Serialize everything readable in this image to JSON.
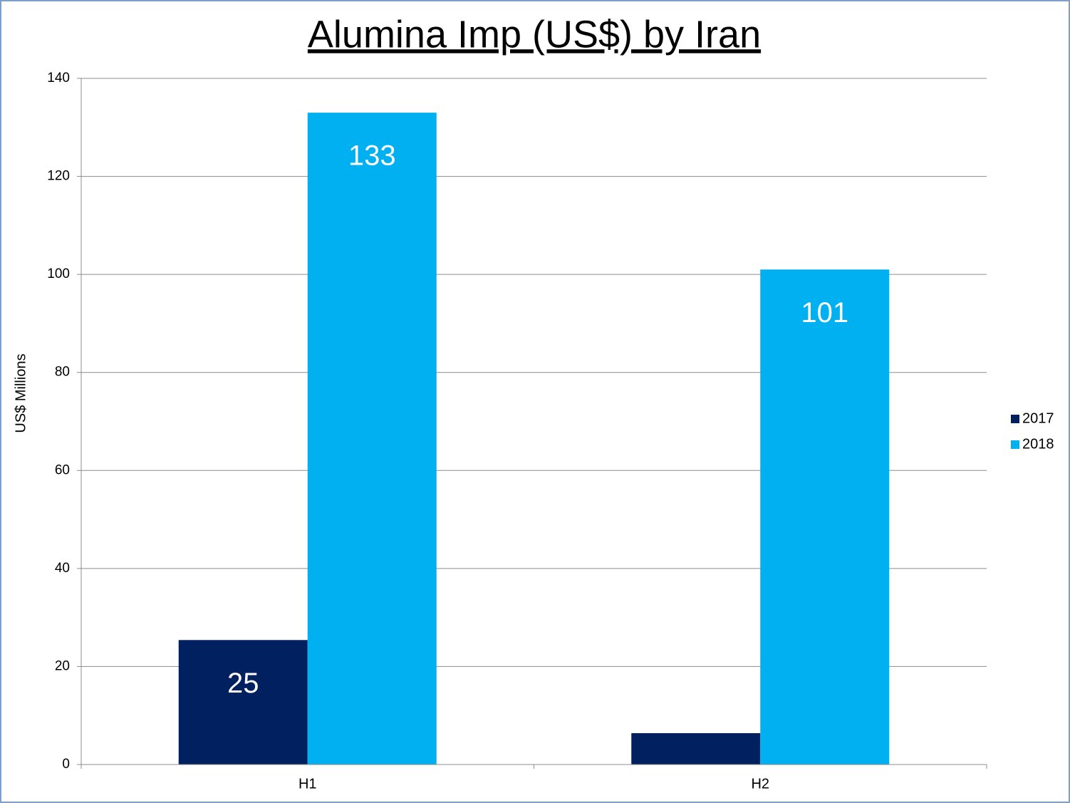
{
  "chart_data": {
    "type": "bar",
    "title": "Alumina Imp (US$) by Iran",
    "y_label": "US$ Millions",
    "categories": [
      "H1",
      "H2"
    ],
    "series": [
      {
        "name": "2017",
        "color": "#002060",
        "values": [
          25.4,
          6.4
        ],
        "value_labels": [
          "25",
          null
        ]
      },
      {
        "name": "2018",
        "color": "#00b0f0",
        "values": [
          133,
          101
        ],
        "value_labels": [
          "133",
          "101"
        ]
      }
    ],
    "ylim": [
      0,
      140
    ],
    "yticks": [
      0,
      20,
      40,
      60,
      80,
      100,
      120,
      140
    ],
    "grid": true,
    "legend": "right"
  }
}
